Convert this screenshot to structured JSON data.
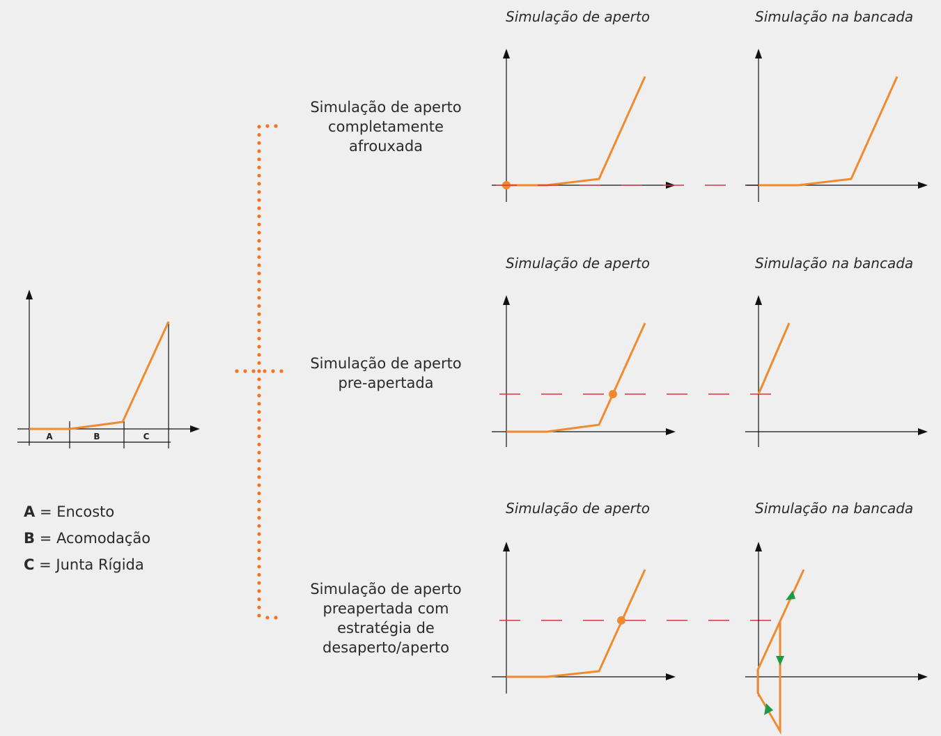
{
  "headers": {
    "tightening": "Simulação de aperto",
    "bench": "Simulação na bancada"
  },
  "rows": [
    {
      "label_lines": [
        "Simulação de aperto",
        "completamente",
        "afrouxada"
      ]
    },
    {
      "label_lines": [
        "Simulação de aperto",
        "pre-apertada"
      ]
    },
    {
      "label_lines": [
        "Simulação de aperto",
        "preapertada com",
        "estratégia de",
        "desaperto/aperto"
      ]
    }
  ],
  "reference_chart": {
    "segments": [
      "A",
      "B",
      "C"
    ]
  },
  "legend": [
    {
      "key": "A",
      "text": "= Encosto"
    },
    {
      "key": "B",
      "text": "= Acomodação"
    },
    {
      "key": "C",
      "text": "= Junta Rígida"
    }
  ],
  "colors": {
    "curve": "#f08a2e",
    "dashed": "#d9343f",
    "arrow_marker": "#1e9a44",
    "axis": "#111111",
    "connector": "#f5731d"
  }
}
